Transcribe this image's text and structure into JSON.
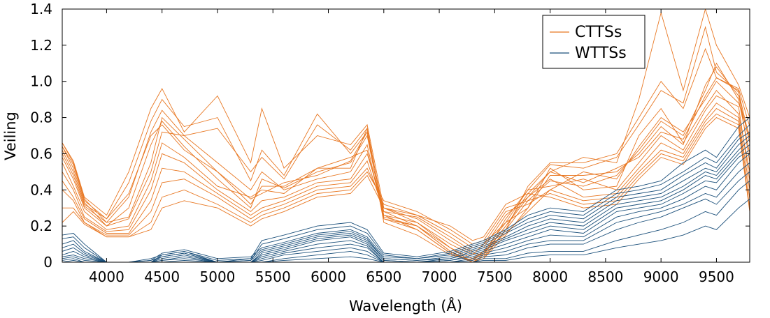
{
  "chart_data": {
    "type": "line",
    "xlabel": "Wavelength (Å)",
    "ylabel": "Veiling",
    "xlim": [
      3600,
      9800
    ],
    "ylim": [
      0,
      1.4
    ],
    "x_ticks": [
      4000,
      4500,
      5000,
      5500,
      6000,
      6500,
      7000,
      7500,
      8000,
      8500,
      9000,
      9500
    ],
    "y_ticks": [
      0,
      0.2,
      0.4,
      0.6,
      0.8,
      1.0,
      1.2,
      1.4
    ],
    "y_tick_labels": [
      "0",
      "0.2",
      "0.4",
      "0.6",
      "0.8",
      "1.0",
      "1.2",
      "1.4"
    ],
    "grid": false,
    "legend_position": "top-right",
    "legend": [
      {
        "name": "CTTSs",
        "color": "#e87722"
      },
      {
        "name": "WTTSs",
        "color": "#1a4f7a"
      }
    ],
    "series": [
      {
        "name": "CTTSs",
        "color": "#e87722",
        "x": [
          3600,
          3700,
          3800,
          4000,
          4200,
          4400,
          4500,
          4700,
          5000,
          5300,
          5400,
          5600,
          5900,
          6200,
          6350,
          6500,
          6800,
          7100,
          7300,
          7400,
          7600,
          7800,
          8000,
          8300,
          8600,
          8800,
          9000,
          9200,
          9400,
          9500,
          9700,
          9800
        ],
        "lines": [
          [
            0.66,
            0.55,
            0.35,
            0.22,
            0.25,
            0.55,
            0.8,
            0.68,
            0.5,
            0.32,
            0.42,
            0.42,
            0.52,
            0.52,
            0.74,
            0.25,
            0.2,
            0.06,
            0.0,
            0.02,
            0.15,
            0.3,
            0.48,
            0.48,
            0.5,
            0.6,
            0.75,
            0.65,
            0.98,
            1.08,
            0.92,
            0.66
          ],
          [
            0.64,
            0.52,
            0.33,
            0.2,
            0.3,
            0.65,
            0.78,
            0.64,
            0.46,
            0.3,
            0.46,
            0.41,
            0.5,
            0.55,
            0.7,
            0.24,
            0.18,
            0.05,
            0.0,
            0.03,
            0.18,
            0.34,
            0.45,
            0.42,
            0.48,
            0.62,
            0.78,
            0.7,
            0.95,
            1.1,
            0.9,
            0.6
          ],
          [
            0.62,
            0.5,
            0.32,
            0.24,
            0.38,
            0.7,
            0.76,
            0.62,
            0.5,
            0.35,
            0.38,
            0.44,
            0.48,
            0.56,
            0.72,
            0.22,
            0.15,
            0.04,
            0.01,
            0.05,
            0.2,
            0.38,
            0.5,
            0.44,
            0.52,
            0.58,
            0.72,
            0.68,
            0.92,
            1.02,
            0.95,
            0.55
          ],
          [
            0.58,
            0.46,
            0.3,
            0.2,
            0.24,
            0.5,
            0.72,
            0.7,
            0.55,
            0.4,
            0.5,
            0.4,
            0.46,
            0.5,
            0.65,
            0.24,
            0.2,
            0.08,
            0.02,
            0.06,
            0.16,
            0.28,
            0.4,
            0.5,
            0.46,
            0.64,
            0.8,
            0.72,
            0.9,
            1.0,
            0.88,
            0.7
          ],
          [
            0.55,
            0.42,
            0.28,
            0.18,
            0.2,
            0.45,
            0.66,
            0.58,
            0.42,
            0.36,
            0.4,
            0.38,
            0.52,
            0.58,
            0.62,
            0.26,
            0.22,
            0.1,
            0.04,
            0.1,
            0.22,
            0.3,
            0.52,
            0.4,
            0.42,
            0.7,
            0.85,
            0.66,
            0.86,
            0.95,
            0.82,
            0.5
          ],
          [
            0.5,
            0.4,
            0.25,
            0.17,
            0.18,
            0.4,
            0.6,
            0.55,
            0.4,
            0.28,
            0.34,
            0.36,
            0.44,
            0.46,
            0.6,
            0.3,
            0.24,
            0.12,
            0.05,
            0.04,
            0.24,
            0.4,
            0.42,
            0.46,
            0.4,
            0.55,
            0.7,
            0.62,
            0.84,
            0.92,
            0.86,
            0.45
          ],
          [
            0.45,
            0.36,
            0.24,
            0.16,
            0.16,
            0.34,
            0.52,
            0.5,
            0.38,
            0.26,
            0.3,
            0.34,
            0.42,
            0.44,
            0.56,
            0.28,
            0.25,
            0.14,
            0.06,
            0.08,
            0.26,
            0.36,
            0.46,
            0.36,
            0.38,
            0.52,
            0.66,
            0.6,
            0.8,
            0.88,
            0.8,
            0.4
          ],
          [
            0.4,
            0.34,
            0.22,
            0.15,
            0.15,
            0.28,
            0.44,
            0.46,
            0.36,
            0.24,
            0.28,
            0.32,
            0.4,
            0.42,
            0.52,
            0.32,
            0.26,
            0.16,
            0.08,
            0.1,
            0.28,
            0.32,
            0.4,
            0.34,
            0.36,
            0.5,
            0.62,
            0.58,
            0.78,
            0.85,
            0.78,
            0.35
          ],
          [
            0.3,
            0.3,
            0.22,
            0.14,
            0.14,
            0.22,
            0.36,
            0.4,
            0.32,
            0.22,
            0.26,
            0.3,
            0.38,
            0.4,
            0.5,
            0.34,
            0.28,
            0.18,
            0.1,
            0.12,
            0.3,
            0.34,
            0.38,
            0.32,
            0.34,
            0.48,
            0.6,
            0.56,
            0.76,
            0.82,
            0.76,
            0.3
          ],
          [
            0.22,
            0.28,
            0.21,
            0.14,
            0.14,
            0.18,
            0.3,
            0.34,
            0.3,
            0.2,
            0.24,
            0.28,
            0.36,
            0.38,
            0.48,
            0.3,
            0.26,
            0.2,
            0.12,
            0.14,
            0.32,
            0.38,
            0.36,
            0.3,
            0.32,
            0.46,
            0.58,
            0.54,
            0.74,
            0.8,
            0.74,
            0.28
          ],
          [
            0.66,
            0.56,
            0.36,
            0.26,
            0.5,
            0.85,
            0.96,
            0.72,
            0.92,
            0.55,
            0.85,
            0.52,
            0.7,
            0.65,
            0.76,
            0.3,
            0.22,
            0.08,
            0.0,
            0.02,
            0.18,
            0.42,
            0.55,
            0.55,
            0.6,
            0.8,
            1.0,
            0.85,
            1.18,
            1.02,
            0.96,
            0.75
          ],
          [
            0.64,
            0.54,
            0.34,
            0.24,
            0.44,
            0.78,
            0.9,
            0.75,
            0.8,
            0.45,
            0.62,
            0.48,
            0.82,
            0.6,
            0.72,
            0.28,
            0.2,
            0.06,
            0.0,
            0.04,
            0.2,
            0.36,
            0.5,
            0.58,
            0.55,
            0.9,
            1.38,
            0.95,
            1.4,
            1.2,
            0.98,
            0.8
          ],
          [
            0.6,
            0.48,
            0.31,
            0.22,
            0.36,
            0.72,
            0.84,
            0.7,
            0.74,
            0.5,
            0.58,
            0.46,
            0.76,
            0.62,
            0.74,
            0.26,
            0.18,
            0.05,
            0.01,
            0.06,
            0.22,
            0.4,
            0.54,
            0.52,
            0.58,
            0.76,
            0.95,
            0.88,
            1.3,
            1.05,
            0.94,
            0.68
          ]
        ]
      },
      {
        "name": "WTTSs",
        "color": "#1a4f7a",
        "x": [
          3600,
          3700,
          3800,
          4000,
          4200,
          4400,
          4500,
          4700,
          5000,
          5300,
          5400,
          5600,
          5900,
          6200,
          6350,
          6500,
          6800,
          7100,
          7300,
          7400,
          7600,
          7800,
          8000,
          8300,
          8600,
          8800,
          9000,
          9200,
          9400,
          9500,
          9700,
          9800
        ],
        "lines": [
          [
            0.15,
            0.16,
            0.1,
            0.0,
            0.0,
            0.0,
            0.04,
            0.06,
            0.0,
            0.02,
            0.12,
            0.15,
            0.2,
            0.22,
            0.18,
            0.05,
            0.03,
            0.06,
            0.1,
            0.12,
            0.18,
            0.26,
            0.3,
            0.28,
            0.4,
            0.42,
            0.45,
            0.55,
            0.62,
            0.58,
            0.75,
            0.8
          ],
          [
            0.13,
            0.14,
            0.08,
            0.0,
            0.0,
            0.0,
            0.03,
            0.05,
            0.0,
            0.01,
            0.1,
            0.13,
            0.18,
            0.2,
            0.16,
            0.04,
            0.02,
            0.05,
            0.09,
            0.11,
            0.17,
            0.24,
            0.28,
            0.26,
            0.38,
            0.4,
            0.43,
            0.5,
            0.58,
            0.55,
            0.7,
            0.76
          ],
          [
            0.1,
            0.12,
            0.06,
            0.0,
            0.0,
            0.01,
            0.05,
            0.07,
            0.02,
            0.03,
            0.08,
            0.11,
            0.16,
            0.18,
            0.14,
            0.03,
            0.02,
            0.04,
            0.08,
            0.1,
            0.16,
            0.22,
            0.26,
            0.24,
            0.36,
            0.38,
            0.4,
            0.48,
            0.55,
            0.52,
            0.68,
            0.72
          ],
          [
            0.08,
            0.1,
            0.05,
            0.0,
            0.0,
            0.02,
            0.04,
            0.06,
            0.01,
            0.02,
            0.07,
            0.1,
            0.15,
            0.17,
            0.13,
            0.02,
            0.01,
            0.03,
            0.07,
            0.09,
            0.14,
            0.2,
            0.24,
            0.22,
            0.34,
            0.36,
            0.38,
            0.45,
            0.52,
            0.5,
            0.65,
            0.7
          ],
          [
            0.06,
            0.08,
            0.04,
            0.0,
            0.0,
            0.01,
            0.03,
            0.05,
            0.0,
            0.01,
            0.06,
            0.09,
            0.14,
            0.16,
            0.12,
            0.02,
            0.01,
            0.02,
            0.06,
            0.08,
            0.13,
            0.18,
            0.22,
            0.2,
            0.32,
            0.34,
            0.36,
            0.42,
            0.5,
            0.48,
            0.62,
            0.68
          ],
          [
            0.04,
            0.06,
            0.03,
            0.0,
            0.0,
            0.0,
            0.02,
            0.04,
            0.0,
            0.0,
            0.05,
            0.08,
            0.13,
            0.15,
            0.11,
            0.01,
            0.0,
            0.02,
            0.05,
            0.07,
            0.12,
            0.16,
            0.2,
            0.18,
            0.3,
            0.32,
            0.34,
            0.4,
            0.48,
            0.46,
            0.6,
            0.65
          ],
          [
            0.03,
            0.04,
            0.02,
            0.0,
            0.0,
            0.0,
            0.01,
            0.03,
            0.0,
            0.0,
            0.04,
            0.07,
            0.12,
            0.14,
            0.1,
            0.01,
            0.0,
            0.01,
            0.04,
            0.06,
            0.1,
            0.14,
            0.18,
            0.16,
            0.28,
            0.3,
            0.32,
            0.38,
            0.45,
            0.44,
            0.58,
            0.62
          ],
          [
            0.02,
            0.03,
            0.01,
            0.0,
            0.0,
            0.0,
            0.01,
            0.02,
            0.0,
            0.0,
            0.03,
            0.06,
            0.1,
            0.12,
            0.09,
            0.0,
            0.0,
            0.01,
            0.03,
            0.05,
            0.08,
            0.12,
            0.15,
            0.14,
            0.25,
            0.28,
            0.3,
            0.35,
            0.42,
            0.4,
            0.55,
            0.6
          ],
          [
            0.01,
            0.02,
            0.0,
            0.0,
            0.0,
            0.0,
            0.0,
            0.01,
            0.0,
            0.0,
            0.02,
            0.05,
            0.08,
            0.1,
            0.08,
            0.0,
            0.0,
            0.0,
            0.02,
            0.04,
            0.06,
            0.1,
            0.12,
            0.12,
            0.22,
            0.25,
            0.28,
            0.32,
            0.38,
            0.36,
            0.5,
            0.55
          ],
          [
            0.0,
            0.01,
            0.0,
            0.0,
            0.0,
            0.0,
            0.0,
            0.0,
            0.0,
            0.0,
            0.01,
            0.04,
            0.06,
            0.08,
            0.06,
            0.0,
            0.0,
            0.0,
            0.01,
            0.03,
            0.04,
            0.08,
            0.1,
            0.1,
            0.18,
            0.22,
            0.25,
            0.3,
            0.35,
            0.32,
            0.45,
            0.5
          ],
          [
            0.0,
            0.0,
            0.0,
            0.0,
            0.0,
            0.0,
            0.0,
            0.0,
            0.0,
            0.0,
            0.0,
            0.02,
            0.04,
            0.06,
            0.04,
            0.0,
            0.0,
            0.0,
            0.0,
            0.02,
            0.02,
            0.05,
            0.06,
            0.06,
            0.12,
            0.15,
            0.18,
            0.22,
            0.28,
            0.26,
            0.4,
            0.45
          ],
          [
            0.0,
            0.0,
            0.0,
            0.0,
            0.0,
            0.0,
            0.0,
            0.0,
            0.0,
            0.0,
            0.0,
            0.01,
            0.02,
            0.03,
            0.02,
            0.0,
            0.0,
            0.0,
            0.0,
            0.01,
            0.01,
            0.03,
            0.04,
            0.04,
            0.08,
            0.1,
            0.12,
            0.15,
            0.2,
            0.18,
            0.3,
            0.35
          ]
        ]
      }
    ]
  }
}
